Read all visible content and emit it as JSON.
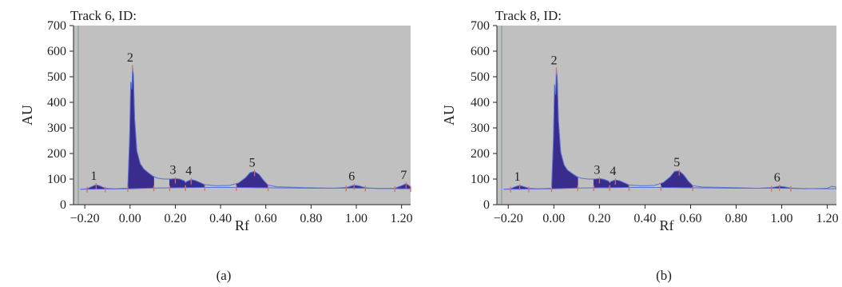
{
  "figure": {
    "captions": [
      "(a)",
      "(b)"
    ]
  },
  "colors": {
    "plot_bg": "#c0c0c0",
    "peak_fill": "#3a2c8c",
    "baseline": "#5570d8",
    "marker": "#d07070",
    "vline": "#7a9a88"
  },
  "chart_data": [
    {
      "type": "area",
      "title": "Track 6, ID:",
      "xlabel": "Rf",
      "ylabel": "AU",
      "xlim": [
        -0.25,
        1.24
      ],
      "ylim": [
        0,
        700
      ],
      "xticks": [
        -0.2,
        0.0,
        0.2,
        0.4,
        0.6,
        0.8,
        1.0,
        1.2
      ],
      "xtick_labels": [
        "−0.20",
        "0.00",
        "0.20",
        "0.40",
        "0.60",
        "0.80",
        "1.00",
        "1.20"
      ],
      "yticks": [
        0,
        100,
        200,
        300,
        400,
        500,
        600,
        700
      ],
      "ytick_labels": [
        "0",
        "100",
        "200",
        "300",
        "400",
        "500",
        "600",
        "700"
      ],
      "grid": false,
      "baseline": [
        [
          -0.22,
          60
        ],
        [
          0.0,
          62
        ],
        [
          0.1,
          65
        ],
        [
          0.2,
          66
        ],
        [
          0.32,
          67
        ],
        [
          0.45,
          67
        ],
        [
          0.6,
          66
        ],
        [
          0.8,
          64
        ],
        [
          1.0,
          65
        ],
        [
          1.2,
          62
        ],
        [
          1.24,
          62
        ]
      ],
      "signal": [
        [
          -0.22,
          60
        ],
        [
          -0.19,
          62
        ],
        [
          -0.17,
          70
        ],
        [
          -0.15,
          78
        ],
        [
          -0.13,
          72
        ],
        [
          -0.11,
          64
        ],
        [
          -0.07,
          62
        ],
        [
          -0.01,
          65
        ],
        [
          -0.002,
          260
        ],
        [
          0.003,
          480
        ],
        [
          0.008,
          450
        ],
        [
          0.011,
          540
        ],
        [
          0.015,
          505
        ],
        [
          0.02,
          340
        ],
        [
          0.03,
          210
        ],
        [
          0.045,
          160
        ],
        [
          0.06,
          140
        ],
        [
          0.08,
          125
        ],
        [
          0.1,
          112
        ],
        [
          0.12,
          104
        ],
        [
          0.15,
          100
        ],
        [
          0.18,
          100
        ],
        [
          0.2,
          102
        ],
        [
          0.22,
          100
        ],
        [
          0.24,
          93
        ],
        [
          0.245,
          86
        ],
        [
          0.25,
          90
        ],
        [
          0.27,
          98
        ],
        [
          0.29,
          94
        ],
        [
          0.31,
          86
        ],
        [
          0.33,
          78
        ],
        [
          0.38,
          74
        ],
        [
          0.44,
          75
        ],
        [
          0.48,
          85
        ],
        [
          0.51,
          105
        ],
        [
          0.53,
          125
        ],
        [
          0.55,
          130
        ],
        [
          0.57,
          118
        ],
        [
          0.59,
          95
        ],
        [
          0.61,
          76
        ],
        [
          0.65,
          70
        ],
        [
          0.75,
          67
        ],
        [
          0.9,
          64
        ],
        [
          0.96,
          68
        ],
        [
          0.99,
          76
        ],
        [
          1.01,
          74
        ],
        [
          1.04,
          66
        ],
        [
          1.1,
          63
        ],
        [
          1.17,
          64
        ],
        [
          1.2,
          74
        ],
        [
          1.22,
          82
        ],
        [
          1.24,
          70
        ]
      ],
      "peaks": [
        {
          "label": "1",
          "x": -0.15,
          "y": 78,
          "start": -0.19,
          "end": -0.11
        },
        {
          "label": "2",
          "x": 0.011,
          "y": 540,
          "start": -0.01,
          "end": 0.105
        },
        {
          "label": "3",
          "x": 0.2,
          "y": 102,
          "start": 0.175,
          "end": 0.245
        },
        {
          "label": "4",
          "x": 0.27,
          "y": 98,
          "start": 0.245,
          "end": 0.33
        },
        {
          "label": "5",
          "x": 0.55,
          "y": 130,
          "start": 0.47,
          "end": 0.61
        },
        {
          "label": "6",
          "x": 0.99,
          "y": 76,
          "start": 0.955,
          "end": 1.04
        },
        {
          "label": "7",
          "x": 1.22,
          "y": 82,
          "start": 1.17,
          "end": 1.24
        }
      ]
    },
    {
      "type": "area",
      "title": "Track 8, ID:",
      "xlabel": "Rf",
      "ylabel": "AU",
      "xlim": [
        -0.25,
        1.24
      ],
      "ylim": [
        0,
        700
      ],
      "xticks": [
        -0.2,
        0.0,
        0.2,
        0.4,
        0.6,
        0.8,
        1.0,
        1.2
      ],
      "xtick_labels": [
        "−0.20",
        "0.00",
        "0.20",
        "0.40",
        "0.60",
        "0.80",
        "1.00",
        "1.20"
      ],
      "yticks": [
        0,
        100,
        200,
        300,
        400,
        500,
        600,
        700
      ],
      "ytick_labels": [
        "0",
        "100",
        "200",
        "300",
        "400",
        "500",
        "600",
        "700"
      ],
      "grid": false,
      "baseline": [
        [
          -0.22,
          60
        ],
        [
          0.0,
          62
        ],
        [
          0.1,
          65
        ],
        [
          0.2,
          66
        ],
        [
          0.32,
          67
        ],
        [
          0.45,
          67
        ],
        [
          0.6,
          66
        ],
        [
          0.8,
          64
        ],
        [
          1.0,
          64
        ],
        [
          1.2,
          62
        ],
        [
          1.24,
          62
        ]
      ],
      "signal": [
        [
          -0.22,
          60
        ],
        [
          -0.19,
          62
        ],
        [
          -0.17,
          70
        ],
        [
          -0.15,
          75
        ],
        [
          -0.13,
          70
        ],
        [
          -0.11,
          64
        ],
        [
          -0.07,
          62
        ],
        [
          -0.01,
          64
        ],
        [
          -0.002,
          250
        ],
        [
          0.003,
          470
        ],
        [
          0.008,
          430
        ],
        [
          0.011,
          530
        ],
        [
          0.015,
          495
        ],
        [
          0.02,
          330
        ],
        [
          0.03,
          205
        ],
        [
          0.045,
          155
        ],
        [
          0.06,
          135
        ],
        [
          0.08,
          122
        ],
        [
          0.1,
          110
        ],
        [
          0.12,
          103
        ],
        [
          0.15,
          100
        ],
        [
          0.18,
          100
        ],
        [
          0.2,
          102
        ],
        [
          0.22,
          99
        ],
        [
          0.24,
          92
        ],
        [
          0.245,
          85
        ],
        [
          0.25,
          90
        ],
        [
          0.27,
          97
        ],
        [
          0.29,
          93
        ],
        [
          0.31,
          85
        ],
        [
          0.33,
          77
        ],
        [
          0.38,
          74
        ],
        [
          0.44,
          75
        ],
        [
          0.48,
          86
        ],
        [
          0.51,
          108
        ],
        [
          0.53,
          130
        ],
        [
          0.55,
          132
        ],
        [
          0.57,
          116
        ],
        [
          0.59,
          92
        ],
        [
          0.61,
          74
        ],
        [
          0.65,
          69
        ],
        [
          0.75,
          67
        ],
        [
          0.9,
          64
        ],
        [
          0.96,
          67
        ],
        [
          0.99,
          72
        ],
        [
          1.01,
          70
        ],
        [
          1.04,
          65
        ],
        [
          1.1,
          62
        ],
        [
          1.2,
          64
        ],
        [
          1.22,
          72
        ],
        [
          1.24,
          68
        ]
      ],
      "peaks": [
        {
          "label": "1",
          "x": -0.15,
          "y": 75,
          "start": -0.19,
          "end": -0.11
        },
        {
          "label": "2",
          "x": 0.011,
          "y": 530,
          "start": -0.01,
          "end": 0.105
        },
        {
          "label": "3",
          "x": 0.2,
          "y": 102,
          "start": 0.175,
          "end": 0.245
        },
        {
          "label": "4",
          "x": 0.27,
          "y": 97,
          "start": 0.245,
          "end": 0.33
        },
        {
          "label": "5",
          "x": 0.55,
          "y": 132,
          "start": 0.47,
          "end": 0.61
        },
        {
          "label": "6",
          "x": 0.99,
          "y": 72,
          "start": 0.955,
          "end": 1.04
        }
      ]
    }
  ]
}
